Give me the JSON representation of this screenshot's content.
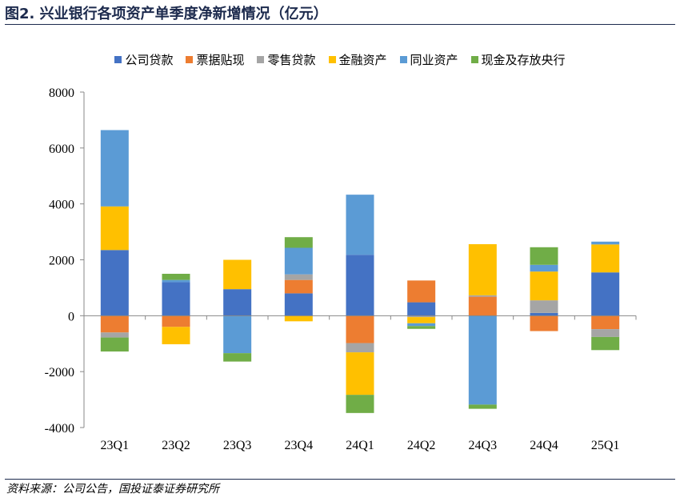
{
  "header": {
    "title": "图2. 兴业银行各项资产单季度净新增情况（亿元）"
  },
  "footer": {
    "source": "资料来源：公司公告，国投证泰证券研究所"
  },
  "chart_data": {
    "type": "bar",
    "stacked": true,
    "title": "兴业银行各项资产单季度净新增情况（亿元）",
    "xlabel": "",
    "ylabel": "",
    "ylim": [
      -4000,
      8000
    ],
    "yticks": [
      -4000,
      -2000,
      0,
      2000,
      4000,
      6000,
      8000
    ],
    "ytick_labels": [
      "-4000",
      "-2000",
      "0",
      "2000",
      "4000",
      "6000",
      "8000"
    ],
    "legend_position": "top",
    "grid": false,
    "categories": [
      "23Q1",
      "23Q2",
      "23Q3",
      "23Q4",
      "24Q1",
      "24Q2",
      "24Q3",
      "24Q4",
      "25Q1"
    ],
    "series": [
      {
        "name": "公司贷款",
        "color": "#4472c4",
        "values": [
          2350,
          1200,
          950,
          800,
          2180,
          480,
          0,
          100,
          1550
        ]
      },
      {
        "name": "票据贴现",
        "color": "#ed7d31",
        "values": [
          -600,
          -400,
          0,
          480,
          -980,
          780,
          680,
          -550,
          -480
        ]
      },
      {
        "name": "零售贷款",
        "color": "#a5a5a5",
        "values": [
          -180,
          0,
          0,
          200,
          -330,
          -50,
          50,
          450,
          -280
        ]
      },
      {
        "name": "金融资产",
        "color": "#ffc000",
        "values": [
          1560,
          -620,
          1050,
          -200,
          -1520,
          -220,
          1830,
          1030,
          1000
        ]
      },
      {
        "name": "同业资产",
        "color": "#5b9bd5",
        "values": [
          2730,
          80,
          -1340,
          950,
          2150,
          -100,
          -3180,
          240,
          100
        ]
      },
      {
        "name": "现金及存放央行",
        "color": "#70ad47",
        "values": [
          -500,
          220,
          -300,
          380,
          -650,
          -100,
          -150,
          630,
          -470
        ]
      }
    ]
  }
}
